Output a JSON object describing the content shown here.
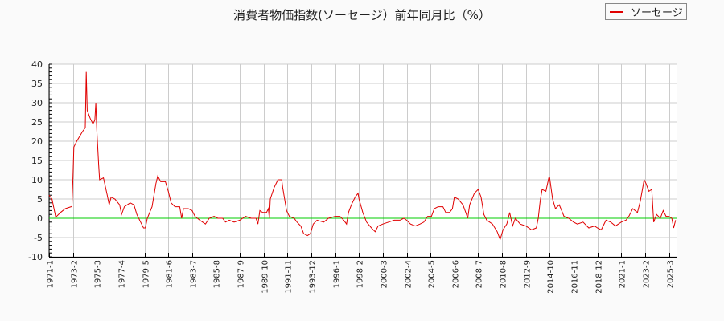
{
  "title": "消費者物価指数(ソーセージ）前年同月比（%）",
  "legend": [
    {
      "label": "ソーセージ",
      "color": "#e00000"
    }
  ],
  "colors": {
    "series": "#e00000",
    "zero_line": "#00cc00",
    "grid": "#cccccc",
    "plot_bg": "#ffffff",
    "page_bg": "#fafafa"
  },
  "chart_data": {
    "type": "line",
    "title": "消費者物価指数(ソーセージ）前年同月比（%）",
    "xlabel": "",
    "ylabel": "",
    "ylim": [
      -10,
      40
    ],
    "yticks": [
      40,
      35,
      30,
      25,
      20,
      15,
      10,
      5,
      0,
      -5,
      -10
    ],
    "xticks": [
      "1971-1",
      "1973-2",
      "1975-3",
      "1977-4",
      "1979-5",
      "1981-6",
      "1983-7",
      "1985-8",
      "1987-9",
      "1989-10",
      "1991-11",
      "1993-12",
      "1996-1",
      "1998-2",
      "2000-3",
      "2002-4",
      "2004-5",
      "2006-6",
      "2008-7",
      "2010-8",
      "2012-9",
      "2014-10",
      "2016-11",
      "2018-12",
      "2021-1",
      "2023-2",
      "2025-3"
    ],
    "grid": true,
    "legend_position": "top-right",
    "series": [
      {
        "name": "ソーセージ",
        "points": [
          [
            "1971-1",
            6.0
          ],
          [
            "1971-4",
            5.0
          ],
          [
            "1971-8",
            0.3
          ],
          [
            "1972-1",
            1.5
          ],
          [
            "1972-6",
            2.5
          ],
          [
            "1972-12",
            3.0
          ],
          [
            "1973-1",
            3.0
          ],
          [
            "1973-2",
            10.0
          ],
          [
            "1973-3",
            18.5
          ],
          [
            "1973-6",
            20.0
          ],
          [
            "1973-12",
            22.5
          ],
          [
            "1974-3",
            23.5
          ],
          [
            "1974-4",
            38.0
          ],
          [
            "1974-5",
            28.0
          ],
          [
            "1974-8",
            26.0
          ],
          [
            "1974-11",
            24.5
          ],
          [
            "1975-1",
            25.5
          ],
          [
            "1975-2",
            30.0
          ],
          [
            "1975-3",
            23.0
          ],
          [
            "1975-5",
            14.0
          ],
          [
            "1975-6",
            10.0
          ],
          [
            "1975-10",
            10.5
          ],
          [
            "1976-2",
            6.0
          ],
          [
            "1976-4",
            3.5
          ],
          [
            "1976-6",
            5.5
          ],
          [
            "1976-10",
            5.0
          ],
          [
            "1977-3",
            3.5
          ],
          [
            "1977-5",
            1.0
          ],
          [
            "1977-8",
            3.0
          ],
          [
            "1978-2",
            4.0
          ],
          [
            "1978-6",
            3.5
          ],
          [
            "1978-9",
            1.0
          ],
          [
            "1979-1",
            -1.0
          ],
          [
            "1979-4",
            -2.5
          ],
          [
            "1979-6",
            -2.5
          ],
          [
            "1979-8",
            0.0
          ],
          [
            "1980-1",
            3.0
          ],
          [
            "1980-5",
            9.0
          ],
          [
            "1980-7",
            11.0
          ],
          [
            "1980-10",
            9.5
          ],
          [
            "1981-3",
            9.5
          ],
          [
            "1981-6",
            7.0
          ],
          [
            "1981-9",
            4.0
          ],
          [
            "1982-1",
            3.0
          ],
          [
            "1982-6",
            3.0
          ],
          [
            "1982-8",
            0.0
          ],
          [
            "1982-10",
            2.5
          ],
          [
            "1983-3",
            2.5
          ],
          [
            "1983-7",
            2.0
          ],
          [
            "1983-10",
            0.5
          ],
          [
            "1984-3",
            -0.5
          ],
          [
            "1984-6",
            -1.0
          ],
          [
            "1984-9",
            -1.5
          ],
          [
            "1985-1",
            0.0
          ],
          [
            "1985-6",
            0.5
          ],
          [
            "1985-10",
            0.0
          ],
          [
            "1986-3",
            0.0
          ],
          [
            "1986-6",
            -1.0
          ],
          [
            "1986-10",
            -0.5
          ],
          [
            "1987-3",
            -1.0
          ],
          [
            "1987-9",
            -0.5
          ],
          [
            "1988-3",
            0.5
          ],
          [
            "1988-9",
            0.0
          ],
          [
            "1989-2",
            0.0
          ],
          [
            "1989-4",
            -1.5
          ],
          [
            "1989-6",
            2.0
          ],
          [
            "1989-9",
            1.5
          ],
          [
            "1990-1",
            1.5
          ],
          [
            "1990-3",
            2.5
          ],
          [
            "1990-4",
            0.0
          ],
          [
            "1990-5",
            5.0
          ],
          [
            "1990-9",
            8.0
          ],
          [
            "1991-1",
            10.0
          ],
          [
            "1991-5",
            10.0
          ],
          [
            "1991-6",
            8.0
          ],
          [
            "1991-10",
            2.0
          ],
          [
            "1992-1",
            0.5
          ],
          [
            "1992-6",
            0.0
          ],
          [
            "1992-9",
            -1.0
          ],
          [
            "1993-1",
            -2.0
          ],
          [
            "1993-4",
            -4.0
          ],
          [
            "1993-8",
            -4.5
          ],
          [
            "1993-11",
            -4.0
          ],
          [
            "1994-2",
            -1.5
          ],
          [
            "1994-6",
            -0.5
          ],
          [
            "1995-1",
            -1.0
          ],
          [
            "1995-6",
            0.0
          ],
          [
            "1996-1",
            0.5
          ],
          [
            "1996-6",
            0.5
          ],
          [
            "1996-10",
            -0.5
          ],
          [
            "1997-1",
            -1.5
          ],
          [
            "1997-3",
            1.5
          ],
          [
            "1997-6",
            3.5
          ],
          [
            "1997-10",
            5.5
          ],
          [
            "1998-1",
            6.5
          ],
          [
            "1998-2",
            5.0
          ],
          [
            "1998-6",
            1.5
          ],
          [
            "1998-10",
            -1.0
          ],
          [
            "1999-3",
            -2.5
          ],
          [
            "1999-7",
            -3.5
          ],
          [
            "1999-10",
            -2.0
          ],
          [
            "2000-3",
            -1.5
          ],
          [
            "2000-9",
            -1.0
          ],
          [
            "2001-3",
            -0.5
          ],
          [
            "2001-9",
            -0.5
          ],
          [
            "2002-1",
            0.0
          ],
          [
            "2002-4",
            -0.5
          ],
          [
            "2002-8",
            -1.5
          ],
          [
            "2003-1",
            -2.0
          ],
          [
            "2003-6",
            -1.5
          ],
          [
            "2003-10",
            -1.0
          ],
          [
            "2004-2",
            0.5
          ],
          [
            "2004-6",
            0.5
          ],
          [
            "2004-9",
            2.5
          ],
          [
            "2005-1",
            3.0
          ],
          [
            "2005-6",
            3.0
          ],
          [
            "2005-9",
            1.5
          ],
          [
            "2006-1",
            1.5
          ],
          [
            "2006-4",
            2.5
          ],
          [
            "2006-6",
            5.5
          ],
          [
            "2006-10",
            5.0
          ],
          [
            "2007-3",
            3.5
          ],
          [
            "2007-6",
            1.5
          ],
          [
            "2007-8",
            0.0
          ],
          [
            "2007-10",
            3.5
          ],
          [
            "2008-3",
            6.5
          ],
          [
            "2008-7",
            7.5
          ],
          [
            "2008-10",
            5.5
          ],
          [
            "2009-1",
            1.0
          ],
          [
            "2009-4",
            -0.5
          ],
          [
            "2009-10",
            -1.5
          ],
          [
            "2010-3",
            -3.5
          ],
          [
            "2010-6",
            -5.5
          ],
          [
            "2010-9",
            -3.0
          ],
          [
            "2011-1",
            -1.5
          ],
          [
            "2011-4",
            1.5
          ],
          [
            "2011-7",
            -2.0
          ],
          [
            "2011-10",
            0.0
          ],
          [
            "2012-3",
            -1.5
          ],
          [
            "2012-9",
            -2.0
          ],
          [
            "2013-3",
            -3.0
          ],
          [
            "2013-8",
            -2.5
          ],
          [
            "2013-10",
            0.0
          ],
          [
            "2013-12",
            4.5
          ],
          [
            "2014-2",
            7.5
          ],
          [
            "2014-6",
            7.0
          ],
          [
            "2014-9",
            10.5
          ],
          [
            "2014-10",
            10.5
          ],
          [
            "2015-1",
            5.0
          ],
          [
            "2015-4",
            2.5
          ],
          [
            "2015-8",
            3.5
          ],
          [
            "2016-1",
            0.5
          ],
          [
            "2016-6",
            0.0
          ],
          [
            "2016-11",
            -1.0
          ],
          [
            "2017-3",
            -1.5
          ],
          [
            "2017-9",
            -1.0
          ],
          [
            "2018-3",
            -2.5
          ],
          [
            "2018-9",
            -2.0
          ],
          [
            "2018-12",
            -2.5
          ],
          [
            "2019-4",
            -3.0
          ],
          [
            "2019-9",
            -0.5
          ],
          [
            "2020-2",
            -1.0
          ],
          [
            "2020-7",
            -2.0
          ],
          [
            "2021-1",
            -1.0
          ],
          [
            "2021-6",
            -0.5
          ],
          [
            "2021-9",
            0.5
          ],
          [
            "2022-1",
            2.5
          ],
          [
            "2022-6",
            1.5
          ],
          [
            "2022-9",
            4.5
          ],
          [
            "2023-1",
            10.0
          ],
          [
            "2023-3",
            9.0
          ],
          [
            "2023-6",
            7.0
          ],
          [
            "2023-9",
            7.5
          ],
          [
            "2023-11",
            -1.0
          ],
          [
            "2024-2",
            1.0
          ],
          [
            "2024-6",
            0.0
          ],
          [
            "2024-9",
            2.0
          ],
          [
            "2024-12",
            0.5
          ],
          [
            "2025-3",
            0.5
          ],
          [
            "2025-6",
            0.0
          ],
          [
            "2025-8",
            -2.5
          ],
          [
            "2025-10",
            -0.5
          ]
        ]
      }
    ]
  }
}
